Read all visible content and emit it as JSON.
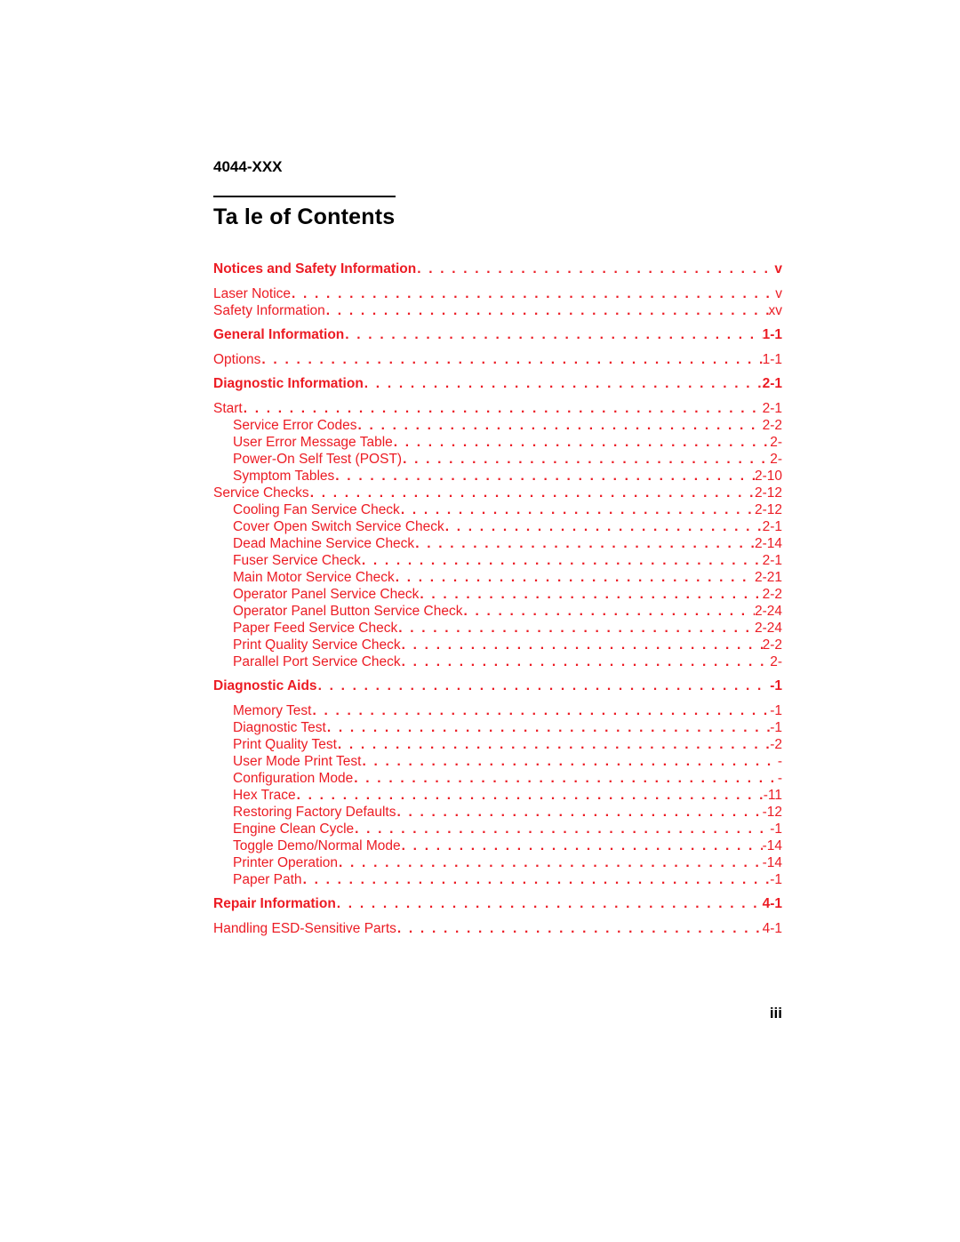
{
  "header_model": "4044-XXX",
  "title": "Ta  le of Contents",
  "footer_page": "iii",
  "colors": {
    "link": "#ec1c24",
    "text": "#000000",
    "background": "#ffffff"
  },
  "typography": {
    "title_fontsize": 25,
    "model_fontsize": 17,
    "entry_fontsize": 15.5,
    "footer_fontsize": 17,
    "font_family": "Arial"
  },
  "dot_leader": ". . . . . . . . . . . . . . . . . . . . . . . . . . . . . . . . . . . . . . . . . . . . . . . . . . . . . . . . . . . . . . . . . . . . . . . . . . . . . . . .",
  "entries": [
    {
      "label": "Notices and Safety Information",
      "page": "v",
      "bold": true,
      "indent": 0,
      "gap": false
    },
    {
      "label": "Laser Notice",
      "page": "v",
      "bold": false,
      "indent": 0,
      "gap": true
    },
    {
      "label": "Safety Information",
      "page": "xv",
      "bold": false,
      "indent": 0,
      "gap": false
    },
    {
      "label": "General Information",
      "page": "1-1",
      "bold": true,
      "indent": 0,
      "gap": true
    },
    {
      "label": "Options",
      "page": "1-1",
      "bold": false,
      "indent": 0,
      "gap": true
    },
    {
      "label": "Diagnostic Information",
      "page": "2-1",
      "bold": true,
      "indent": 0,
      "gap": true
    },
    {
      "label": "Start",
      "page": "2-1",
      "bold": false,
      "indent": 0,
      "gap": true
    },
    {
      "label": "Service Error Codes",
      "page": "2-2",
      "bold": false,
      "indent": 1,
      "gap": false
    },
    {
      "label": "User Error Message Table",
      "page": "2-",
      "bold": false,
      "indent": 1,
      "gap": false
    },
    {
      "label": "Power-On Self Test (POST)",
      "page": "2-",
      "bold": false,
      "indent": 1,
      "gap": false
    },
    {
      "label": "Symptom Tables",
      "page": "2-10",
      "bold": false,
      "indent": 1,
      "gap": false
    },
    {
      "label": "Service Checks",
      "page": "2-12",
      "bold": false,
      "indent": 0,
      "gap": false
    },
    {
      "label": "Cooling Fan Service Check",
      "page": "2-12",
      "bold": false,
      "indent": 1,
      "gap": false
    },
    {
      "label": "Cover Open Switch Service Check",
      "page": "2-1",
      "bold": false,
      "indent": 1,
      "gap": false
    },
    {
      "label": "Dead Machine Service Check",
      "page": "2-14",
      "bold": false,
      "indent": 1,
      "gap": false
    },
    {
      "label": "Fuser Service Check",
      "page": "2-1",
      "bold": false,
      "indent": 1,
      "gap": false
    },
    {
      "label": "Main Motor Service Check",
      "page": "2-21",
      "bold": false,
      "indent": 1,
      "gap": false
    },
    {
      "label": "Operator Panel Service Check",
      "page": "2-2",
      "bold": false,
      "indent": 1,
      "gap": false
    },
    {
      "label": "Operator Panel Button Service Check",
      "page": "2-24",
      "bold": false,
      "indent": 1,
      "gap": false
    },
    {
      "label": "Paper Feed Service Check",
      "page": "2-24",
      "bold": false,
      "indent": 1,
      "gap": false
    },
    {
      "label": "Print Quality Service Check",
      "page": "2-2",
      "bold": false,
      "indent": 1,
      "gap": false
    },
    {
      "label": "Parallel Port Service Check",
      "page": "2-",
      "bold": false,
      "indent": 1,
      "gap": false
    },
    {
      "label": "Diagnostic Aids",
      "page": " -1",
      "bold": true,
      "indent": 0,
      "gap": true
    },
    {
      "label": "Memory Test",
      "page": " -1",
      "bold": false,
      "indent": 1,
      "gap": true
    },
    {
      "label": "Diagnostic Test",
      "page": " -1",
      "bold": false,
      "indent": 1,
      "gap": false
    },
    {
      "label": "Print Quality Test",
      "page": " -2",
      "bold": false,
      "indent": 1,
      "gap": false
    },
    {
      "label": "User Mode Print Test",
      "page": " -",
      "bold": false,
      "indent": 1,
      "gap": false
    },
    {
      "label": "Configuration Mode",
      "page": " -",
      "bold": false,
      "indent": 1,
      "gap": false
    },
    {
      "label": "Hex Trace",
      "page": " -11",
      "bold": false,
      "indent": 1,
      "gap": false
    },
    {
      "label": "Restoring Factory Defaults",
      "page": " -12",
      "bold": false,
      "indent": 1,
      "gap": false
    },
    {
      "label": "Engine Clean Cycle",
      "page": " -1",
      "bold": false,
      "indent": 1,
      "gap": false
    },
    {
      "label": "Toggle Demo/Normal Mode",
      "page": " -14",
      "bold": false,
      "indent": 1,
      "gap": false
    },
    {
      "label": "Printer Operation",
      "page": " -14",
      "bold": false,
      "indent": 1,
      "gap": false
    },
    {
      "label": "Paper Path",
      "page": " -1",
      "bold": false,
      "indent": 1,
      "gap": false
    },
    {
      "label": "Repair Information",
      "page": "4-1",
      "bold": true,
      "indent": 0,
      "gap": true
    },
    {
      "label": "Handling ESD-Sensitive Parts",
      "page": "4-1",
      "bold": false,
      "indent": 0,
      "gap": true
    }
  ]
}
